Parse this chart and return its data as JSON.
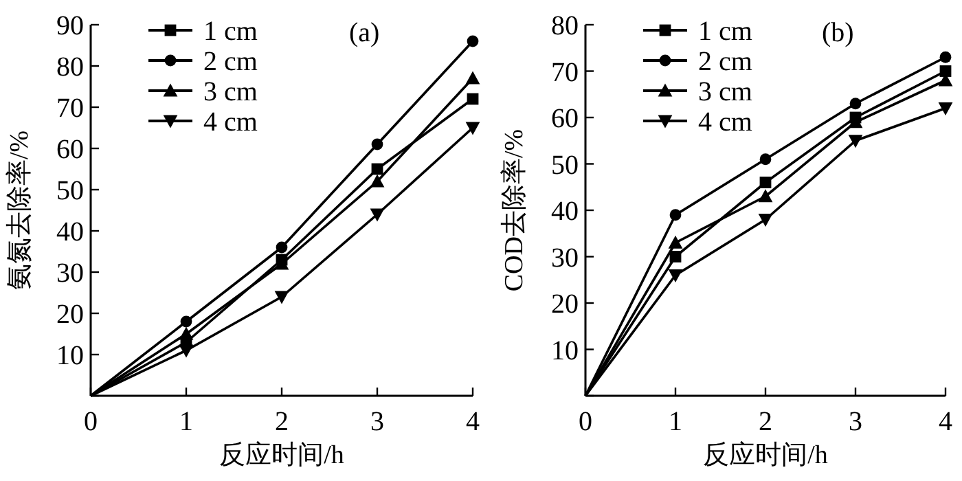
{
  "chart_data": [
    {
      "type": "line",
      "xlabel": "反应时间/h",
      "ylabel": "氨氮去除率/%",
      "x": [
        0,
        1,
        2,
        3,
        4
      ],
      "xlim": [
        0,
        4
      ],
      "xticks": [
        0,
        1,
        2,
        3,
        4
      ],
      "ylim": [
        0,
        90
      ],
      "yticks": [
        {
          "value": 0,
          "label": null
        },
        10,
        20,
        30,
        40,
        50,
        60,
        70,
        80,
        90
      ],
      "legend": "top left",
      "annotations": [
        "(a)"
      ],
      "series": [
        {
          "name": "1 cm",
          "color": "#000000",
          "marker": "square",
          "values": [
            0,
            13,
            33,
            55,
            72
          ]
        },
        {
          "name": "2 cm",
          "color": "#000000",
          "marker": "circle",
          "values": [
            0,
            18,
            36,
            61,
            86
          ]
        },
        {
          "name": "3 cm",
          "color": "#000000",
          "marker": "triangle",
          "values": [
            0,
            15,
            32,
            52,
            77
          ]
        },
        {
          "name": "4 cm",
          "color": "#000000",
          "marker": "triangle-down",
          "values": [
            0,
            11,
            24,
            44,
            65
          ]
        }
      ]
    },
    {
      "type": "line",
      "xlabel": "反应时间/h",
      "ylabel": "COD去除率/%",
      "x": [
        0,
        1,
        2,
        3,
        4
      ],
      "xlim": [
        0,
        4
      ],
      "xticks": [
        0,
        1,
        2,
        3,
        4
      ],
      "ylim": [
        0,
        80
      ],
      "yticks": [
        {
          "value": 0,
          "label": null
        },
        10,
        20,
        30,
        40,
        50,
        60,
        70,
        80
      ],
      "legend": "top left",
      "annotations": [
        "(b)"
      ],
      "series": [
        {
          "name": "1 cm",
          "color": "#000000",
          "marker": "square",
          "values": [
            0,
            30,
            46,
            60,
            70
          ]
        },
        {
          "name": "2 cm",
          "color": "#000000",
          "marker": "circle",
          "values": [
            0,
            39,
            51,
            63,
            73
          ]
        },
        {
          "name": "3 cm",
          "color": "#000000",
          "marker": "triangle",
          "values": [
            0,
            33,
            43,
            59,
            68
          ]
        },
        {
          "name": "4 cm",
          "color": "#000000",
          "marker": "triangle-down",
          "values": [
            0,
            26,
            38,
            55,
            62
          ]
        }
      ]
    }
  ]
}
